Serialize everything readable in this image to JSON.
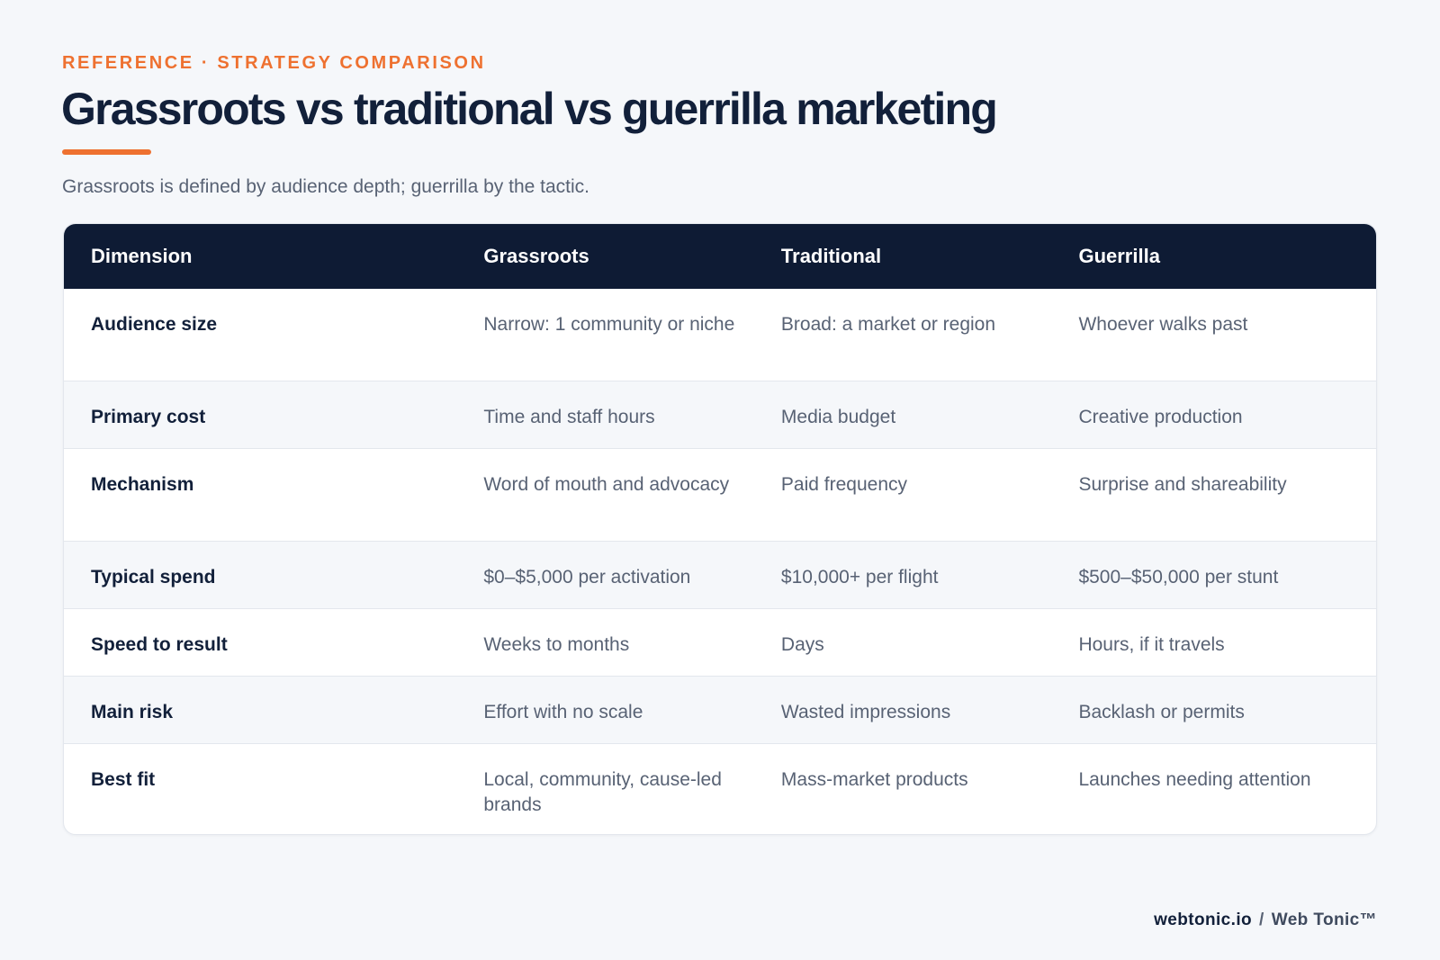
{
  "eyebrow": "REFERENCE · STRATEGY COMPARISON",
  "title": "Grassroots vs traditional vs guerrilla marketing",
  "subtitle": "Grassroots is defined by audience depth; guerrilla by the tactic.",
  "table": {
    "headers": [
      "Dimension",
      "Grassroots",
      "Traditional",
      "Guerrilla"
    ],
    "rows": [
      [
        "Audience size",
        "Narrow: 1 community or niche",
        "Broad: a market or region",
        "Whoever walks past"
      ],
      [
        "Primary cost",
        "Time and staff hours",
        "Media budget",
        "Creative production"
      ],
      [
        "Mechanism",
        "Word of mouth and advocacy",
        "Paid frequency",
        "Surprise and shareability"
      ],
      [
        "Typical spend",
        "$0–$5,000 per activation",
        "$10,000+ per flight",
        "$500–$50,000 per stunt"
      ],
      [
        "Speed to result",
        "Weeks to months",
        "Days",
        "Hours, if it travels"
      ],
      [
        "Main risk",
        "Effort with no scale",
        "Wasted impressions",
        "Backlash or permits"
      ],
      [
        "Best fit",
        "Local, community, cause-led brands",
        "Mass-market products",
        "Launches needing attention"
      ]
    ]
  },
  "footer": {
    "domain": "webtonic.io",
    "separator": "/",
    "brand": "Web Tonic™"
  },
  "colors": {
    "accent": "#ee7130",
    "header_bg": "#0e1b34",
    "text_dark": "#12203a",
    "text_muted": "#586274",
    "page_bg": "#f5f7fa"
  }
}
